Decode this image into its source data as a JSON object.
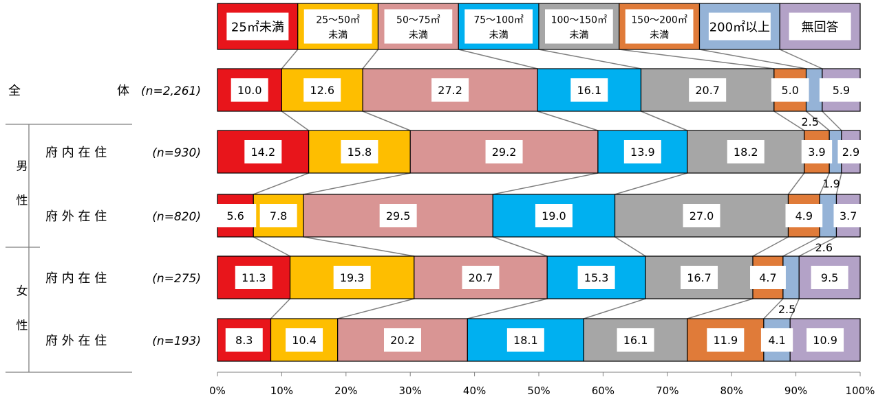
{
  "chart_data": {
    "type": "bar",
    "stacked": true,
    "orientation": "horizontal",
    "percent": true,
    "series": [
      {
        "name": "25㎡未満",
        "label_lines": [
          "25㎡未満"
        ],
        "color": "#E8151B"
      },
      {
        "name": "25～50㎡未満",
        "label_lines": [
          "25～50㎡",
          "未満"
        ],
        "color": "#FEBE00"
      },
      {
        "name": "50～75㎡未満",
        "label_lines": [
          "50～75㎡",
          "未満"
        ],
        "color": "#D99594"
      },
      {
        "name": "75～100㎡未満",
        "label_lines": [
          "75～100㎡",
          "未満"
        ],
        "color": "#00B0F0"
      },
      {
        "name": "100～150㎡未満",
        "label_lines": [
          "100～150㎡",
          "未満"
        ],
        "color": "#A6A6A6"
      },
      {
        "name": "150～200㎡未満",
        "label_lines": [
          "150～200㎡",
          "未満"
        ],
        "color": "#E07B39"
      },
      {
        "name": "200㎡以上",
        "label_lines": [
          "200㎡以上"
        ],
        "color": "#95B3D7"
      },
      {
        "name": "無回答",
        "label_lines": [
          "無回答"
        ],
        "color": "#B3A2C7"
      }
    ],
    "rows": [
      {
        "label": "全　　　　体",
        "n": "(n=2,261)",
        "values": [
          10.0,
          12.6,
          27.2,
          16.1,
          20.7,
          5.0,
          2.5,
          5.9
        ]
      },
      {
        "label": "府 内 在 住",
        "n": "(n=930)",
        "values": [
          14.2,
          15.8,
          29.2,
          13.9,
          18.2,
          3.9,
          1.9,
          2.9
        ]
      },
      {
        "label": "府 外 在 住",
        "n": "(n=820)",
        "values": [
          5.6,
          7.8,
          29.5,
          19.0,
          27.0,
          4.9,
          2.6,
          3.7
        ]
      },
      {
        "label": "府 内 在 住",
        "n": "(n=275)",
        "values": [
          11.3,
          19.3,
          20.7,
          15.3,
          16.7,
          4.7,
          2.5,
          9.5
        ]
      },
      {
        "label": "府 外 在 住",
        "n": "(n=193)",
        "values": [
          8.3,
          10.4,
          20.2,
          18.1,
          16.1,
          11.9,
          4.1,
          10.9
        ]
      }
    ],
    "groups": [
      {
        "label_chars": [
          "男",
          "性"
        ]
      },
      {
        "label_chars": [
          "女",
          "性"
        ]
      }
    ],
    "x_ticks": [
      "0%",
      "10%",
      "20%",
      "30%",
      "40%",
      "50%",
      "60%",
      "70%",
      "80%",
      "90%",
      "100%"
    ],
    "xlim": [
      0,
      100
    ]
  }
}
